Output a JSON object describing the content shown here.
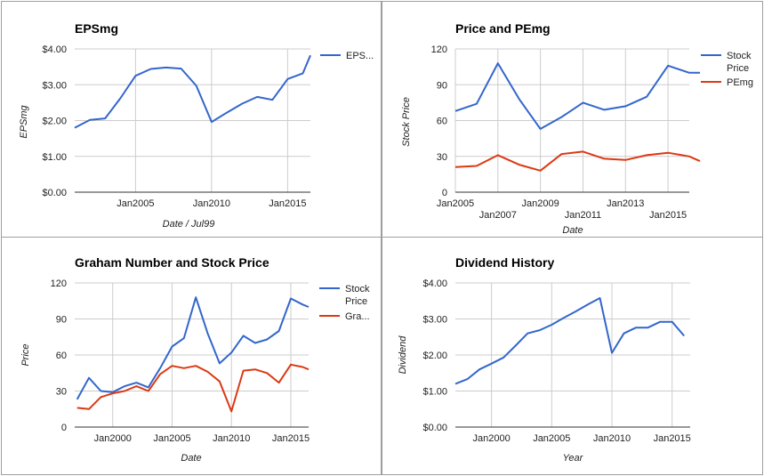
{
  "chart_data": [
    {
      "type": "line",
      "title": "EPSmg",
      "xlabel": "Date / Jul99",
      "ylabel": "EPSmg",
      "x_ticks": [
        "Jan2005",
        "Jan2010",
        "Jan2015"
      ],
      "y_ticks": [
        "$0.00",
        "$1.00",
        "$2.00",
        "$3.00",
        "$4.00"
      ],
      "xlim": [
        2001,
        2016.5
      ],
      "ylim": [
        0,
        4
      ],
      "legend": "right",
      "grid": true,
      "series": [
        {
          "name": "EPS...",
          "color": "#3366cc",
          "points": [
            [
              2001,
              1.8
            ],
            [
              2002,
              2.02
            ],
            [
              2003,
              2.06
            ],
            [
              2004,
              2.62
            ],
            [
              2005,
              3.25
            ],
            [
              2006,
              3.44
            ],
            [
              2007,
              3.48
            ],
            [
              2008,
              3.45
            ],
            [
              2009,
              2.97
            ],
            [
              2010,
              1.96
            ],
            [
              2011,
              2.22
            ],
            [
              2012,
              2.47
            ],
            [
              2013,
              2.66
            ],
            [
              2014,
              2.58
            ],
            [
              2015,
              3.16
            ],
            [
              2016,
              3.32
            ],
            [
              2016.5,
              3.82
            ]
          ]
        }
      ]
    },
    {
      "type": "line",
      "title": "Price and PEmg",
      "xlabel": "Date",
      "ylabel": "Stock Price",
      "x_ticks": [
        "Jan2005",
        "Jan2007",
        "Jan2009",
        "Jan2011",
        "Jan2013",
        "Jan2015"
      ],
      "y_ticks": [
        "0",
        "30",
        "60",
        "90",
        "120"
      ],
      "xlim": [
        2005,
        2016
      ],
      "ylim": [
        0,
        120
      ],
      "legend": "right",
      "grid": true,
      "series": [
        {
          "name": "Stock Price",
          "color": "#3366cc",
          "points": [
            [
              2005,
              68
            ],
            [
              2006,
              74
            ],
            [
              2007,
              108
            ],
            [
              2008,
              78
            ],
            [
              2009,
              53
            ],
            [
              2010,
              63
            ],
            [
              2011,
              75
            ],
            [
              2012,
              69
            ],
            [
              2013,
              72
            ],
            [
              2014,
              80
            ],
            [
              2015,
              106
            ],
            [
              2016,
              100
            ],
            [
              2016.5,
              100
            ]
          ]
        },
        {
          "name": "PEmg",
          "color": "#dc3912",
          "points": [
            [
              2005,
              21
            ],
            [
              2006,
              22
            ],
            [
              2007,
              31
            ],
            [
              2008,
              23
            ],
            [
              2009,
              18
            ],
            [
              2010,
              32
            ],
            [
              2011,
              34
            ],
            [
              2012,
              28
            ],
            [
              2013,
              27
            ],
            [
              2014,
              31
            ],
            [
              2015,
              33
            ],
            [
              2016,
              30
            ],
            [
              2016.5,
              26
            ]
          ]
        }
      ]
    },
    {
      "type": "line",
      "title": "Graham Number and Stock Price",
      "xlabel": "Date",
      "ylabel": "Price",
      "x_ticks": [
        "Jan2000",
        "Jan2005",
        "Jan2010",
        "Jan2015"
      ],
      "y_ticks": [
        "0",
        "30",
        "60",
        "90",
        "120"
      ],
      "xlim": [
        1996.8,
        2016.5
      ],
      "ylim": [
        0,
        120
      ],
      "legend": "right",
      "grid": true,
      "series": [
        {
          "name": "Stock Price",
          "color": "#3366cc",
          "points": [
            [
              1997,
              23
            ],
            [
              1998,
              41
            ],
            [
              1999,
              30
            ],
            [
              2000,
              29
            ],
            [
              2001,
              34
            ],
            [
              2002,
              37
            ],
            [
              2003,
              33
            ],
            [
              2004,
              49
            ],
            [
              2005,
              67
            ],
            [
              2006,
              74
            ],
            [
              2007,
              108
            ],
            [
              2008,
              78
            ],
            [
              2009,
              53
            ],
            [
              2010,
              62
            ],
            [
              2011,
              76
            ],
            [
              2012,
              70
            ],
            [
              2013,
              73
            ],
            [
              2014,
              80
            ],
            [
              2015,
              107
            ],
            [
              2016,
              102
            ],
            [
              2016.5,
              100
            ]
          ]
        },
        {
          "name": "Gra...",
          "color": "#dc3912",
          "points": [
            [
              1997,
              16
            ],
            [
              1998,
              15
            ],
            [
              1999,
              25
            ],
            [
              2000,
              28
            ],
            [
              2001,
              30
            ],
            [
              2002,
              34
            ],
            [
              2003,
              30
            ],
            [
              2004,
              44
            ],
            [
              2005,
              51
            ],
            [
              2006,
              49
            ],
            [
              2007,
              51
            ],
            [
              2008,
              46
            ],
            [
              2009,
              38
            ],
            [
              2010,
              13
            ],
            [
              2011,
              47
            ],
            [
              2012,
              48
            ],
            [
              2013,
              45
            ],
            [
              2014,
              37
            ],
            [
              2015,
              52
            ],
            [
              2016,
              50
            ],
            [
              2016.5,
              48
            ]
          ]
        }
      ]
    },
    {
      "type": "line",
      "title": "Dividend History",
      "xlabel": "Year",
      "ylabel": "Dividend",
      "x_ticks": [
        "Jan2000",
        "Jan2005",
        "Jan2010",
        "Jan2015"
      ],
      "y_ticks": [
        "$0.00",
        "$1.00",
        "$2.00",
        "$3.00",
        "$4.00"
      ],
      "xlim": [
        1997,
        2016.5
      ],
      "ylim": [
        0,
        4
      ],
      "legend": "none",
      "grid": true,
      "series": [
        {
          "name": "",
          "color": "#3366cc",
          "points": [
            [
              1997,
              1.2
            ],
            [
              1998,
              1.33
            ],
            [
              1999,
              1.6
            ],
            [
              2000,
              1.76
            ],
            [
              2001,
              1.93
            ],
            [
              2002,
              2.26
            ],
            [
              2003,
              2.6
            ],
            [
              2004,
              2.69
            ],
            [
              2005,
              2.84
            ],
            [
              2006,
              3.03
            ],
            [
              2007,
              3.21
            ],
            [
              2008,
              3.4
            ],
            [
              2009,
              3.58
            ],
            [
              2010,
              2.06
            ],
            [
              2011,
              2.6
            ],
            [
              2012,
              2.76
            ],
            [
              2013,
              2.76
            ],
            [
              2014,
              2.92
            ],
            [
              2015,
              2.92
            ],
            [
              2016,
              2.53
            ]
          ]
        }
      ]
    }
  ]
}
